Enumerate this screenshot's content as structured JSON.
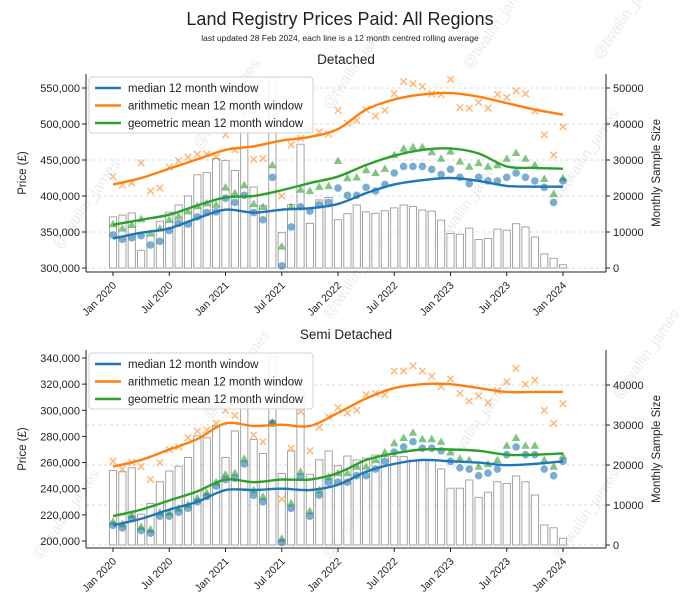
{
  "figure": {
    "title": "Land Registry Prices Paid: All Regions",
    "subtitle": "last updated 28 Feb 2024, each line is a 12 month centred rolling average",
    "watermark": "@twallin_james"
  },
  "colors": {
    "median": "#1f77b4",
    "arithmetic": "#ff7f0e",
    "geometric": "#2ca02c",
    "bars_edge": "#9a9a9a",
    "bars_fill": "#ffffff"
  },
  "chart_data": [
    {
      "type": "line+scatter+bar",
      "title": "Detached",
      "ylabel": "Price (£)",
      "y2label": "Monthly Sample Size",
      "ylim": [
        300000,
        550000
      ],
      "y2lim": [
        0,
        50000
      ],
      "grid": "horizontal dashed",
      "legend_position": "top-left",
      "yticks": [
        300000,
        350000,
        400000,
        450000,
        500000,
        550000
      ],
      "ytick_labels": [
        "300,000",
        "350,000",
        "400,000",
        "450,000",
        "500,000",
        "550,000"
      ],
      "y2ticks": [
        0,
        10000,
        20000,
        30000,
        40000,
        50000
      ],
      "y2tick_labels": [
        "0",
        "10000",
        "20000",
        "30000",
        "40000",
        "50000"
      ],
      "xticks": [
        "2020-01",
        "2020-07",
        "2021-01",
        "2021-07",
        "2022-01",
        "2022-07",
        "2023-01",
        "2023-07",
        "2024-01"
      ],
      "xtick_labels": [
        "Jan 2020",
        "Jul 2020",
        "Jan 2021",
        "Jul 2021",
        "Jan 2022",
        "Jul 2022",
        "Jan 2023",
        "Jul 2023",
        "Jan 2024"
      ],
      "x": [
        "2020-01",
        "2020-02",
        "2020-03",
        "2020-04",
        "2020-05",
        "2020-06",
        "2020-07",
        "2020-08",
        "2020-09",
        "2020-10",
        "2020-11",
        "2020-12",
        "2021-01",
        "2021-02",
        "2021-03",
        "2021-04",
        "2021-05",
        "2021-06",
        "2021-07",
        "2021-08",
        "2021-09",
        "2021-10",
        "2021-11",
        "2021-12",
        "2022-01",
        "2022-02",
        "2022-03",
        "2022-04",
        "2022-05",
        "2022-06",
        "2022-07",
        "2022-08",
        "2022-09",
        "2022-10",
        "2022-11",
        "2022-12",
        "2023-01",
        "2023-02",
        "2023-03",
        "2023-04",
        "2023-05",
        "2023-06",
        "2023-07",
        "2023-08",
        "2023-09",
        "2023-10",
        "2023-11",
        "2023-12",
        "2024-01"
      ],
      "sample_size": [
        14200,
        14700,
        15300,
        4900,
        10000,
        13000,
        15500,
        17500,
        20000,
        25900,
        26500,
        30400,
        29900,
        27100,
        39700,
        22500,
        17400,
        52200,
        9800,
        17600,
        34400,
        12400,
        18900,
        19600,
        13400,
        15100,
        17500,
        15600,
        15200,
        15900,
        16700,
        17500,
        17100,
        16100,
        15800,
        13300,
        9600,
        9400,
        11100,
        7900,
        8200,
        10800,
        10500,
        12300,
        11400,
        8600,
        3900,
        2700,
        900
      ],
      "monthly": {
        "median": [
          346000,
          340000,
          342000,
          345000,
          332000,
          337000,
          352000,
          362000,
          361000,
          371000,
          377000,
          378000,
          397000,
          391000,
          401000,
          377000,
          367000,
          426000,
          303000,
          357000,
          385000,
          379000,
          388000,
          391000,
          411000,
          401000,
          401000,
          412000,
          407000,
          416000,
          432000,
          441000,
          441000,
          441000,
          437000,
          430000,
          437000,
          426000,
          417000,
          426000,
          421000,
          421000,
          426000,
          432000,
          426000,
          421000,
          412000,
          391000,
          421000
        ],
        "arithmetic": [
          427000,
          415000,
          418000,
          446000,
          407000,
          411000,
          440000,
          449000,
          454000,
          458000,
          458000,
          454000,
          485000,
          464000,
          513000,
          451000,
          452000,
          510000,
          400000,
          471000,
          480000,
          494000,
          489000,
          486000,
          519000,
          501000,
          505000,
          520000,
          511000,
          519000,
          542000,
          559000,
          556000,
          552000,
          542000,
          541000,
          562000,
          523000,
          522000,
          530000,
          522000,
          541000,
          537000,
          546000,
          542000,
          518000,
          485000,
          457000,
          496000
        ],
        "geometric": [
          361000,
          355000,
          360000,
          368000,
          348000,
          355000,
          367000,
          372000,
          379000,
          386000,
          390000,
          388000,
          412000,
          404000,
          415000,
          389000,
          385000,
          443000,
          330000,
          385000,
          409000,
          407000,
          413000,
          414000,
          449000,
          425000,
          426000,
          436000,
          432000,
          438000,
          457000,
          466000,
          468000,
          468000,
          461000,
          452000,
          462000,
          448000,
          441000,
          446000,
          441000,
          443000,
          452000,
          460000,
          452000,
          443000,
          424000,
          403000,
          425000
        ]
      },
      "line_x": [
        "2020-01",
        "2020-04",
        "2020-07",
        "2020-10",
        "2021-01",
        "2021-04",
        "2021-07",
        "2021-10",
        "2022-01",
        "2022-04",
        "2022-07",
        "2022-10",
        "2023-01",
        "2023-04",
        "2023-07",
        "2023-10",
        "2024-01"
      ],
      "series": [
        {
          "name": "median 12 month window",
          "key": "median",
          "values": [
            341000,
            349000,
            355000,
            369000,
            381000,
            377000,
            381000,
            383000,
            389000,
            404000,
            416000,
            422000,
            425000,
            421000,
            414000,
            413000,
            413000
          ]
        },
        {
          "name": "arithmetic mean 12 month window",
          "key": "arithmetic",
          "values": [
            416000,
            425000,
            438000,
            451000,
            464000,
            469000,
            477000,
            482000,
            493000,
            520000,
            534000,
            541000,
            543000,
            538000,
            529000,
            520000,
            513000
          ]
        },
        {
          "name": "geometric mean 12 month window",
          "key": "geometric",
          "values": [
            360000,
            367000,
            374000,
            387000,
            398000,
            400000,
            408000,
            418000,
            427000,
            443000,
            456000,
            464000,
            466000,
            459000,
            441000,
            439000,
            438000
          ]
        }
      ]
    },
    {
      "type": "line+scatter+bar",
      "title": "Semi Detached",
      "ylabel": "Price (£)",
      "y2label": "Monthly Sample Size",
      "ylim": [
        200000,
        340000
      ],
      "y2lim": [
        0,
        40000
      ],
      "grid": "horizontal dashed",
      "legend_position": "top-left",
      "yticks": [
        200000,
        220000,
        240000,
        260000,
        280000,
        300000,
        320000,
        340000
      ],
      "ytick_labels": [
        "200,000",
        "220,000",
        "240,000",
        "260,000",
        "280,000",
        "300,000",
        "320,000",
        "340,000"
      ],
      "y2ticks": [
        0,
        10000,
        20000,
        30000,
        40000
      ],
      "y2tick_labels": [
        "0",
        "10000",
        "20000",
        "30000",
        "40000"
      ],
      "xticks": [
        "2020-01",
        "2020-07",
        "2021-01",
        "2021-07",
        "2022-01",
        "2022-07",
        "2023-01",
        "2023-07",
        "2024-01"
      ],
      "xtick_labels": [
        "Jan 2020",
        "Jul 2020",
        "Jan 2021",
        "Jul 2021",
        "Jan 2022",
        "Jul 2022",
        "Jan 2023",
        "Jul 2023",
        "Jan 2024"
      ],
      "x": [
        "2020-01",
        "2020-02",
        "2020-03",
        "2020-04",
        "2020-05",
        "2020-06",
        "2020-07",
        "2020-08",
        "2020-09",
        "2020-10",
        "2020-11",
        "2020-12",
        "2021-01",
        "2021-02",
        "2021-03",
        "2021-04",
        "2021-05",
        "2021-06",
        "2021-07",
        "2021-08",
        "2021-09",
        "2021-10",
        "2021-11",
        "2021-12",
        "2022-01",
        "2022-02",
        "2022-03",
        "2022-04",
        "2022-05",
        "2022-06",
        "2022-07",
        "2022-08",
        "2022-09",
        "2022-10",
        "2022-11",
        "2022-12",
        "2023-01",
        "2023-02",
        "2023-03",
        "2023-04",
        "2023-05",
        "2023-06",
        "2023-07",
        "2023-08",
        "2023-09",
        "2023-10",
        "2023-11",
        "2023-12",
        "2024-01"
      ],
      "sample_size": [
        18600,
        18300,
        19300,
        7700,
        10400,
        15800,
        18500,
        19700,
        21900,
        27300,
        26800,
        29800,
        21900,
        28500,
        39200,
        26400,
        22900,
        47100,
        17900,
        23500,
        38900,
        17700,
        21300,
        23500,
        19800,
        22250,
        21250,
        21700,
        22500,
        22100,
        22100,
        22100,
        21250,
        21250,
        21250,
        19000,
        14200,
        14200,
        16250,
        11900,
        13200,
        15800,
        15400,
        17250,
        15800,
        12500,
        5000,
        4300,
        1700
      ],
      "monthly": {
        "median": [
          212000,
          210000,
          217000,
          208000,
          206000,
          219000,
          219000,
          222000,
          225000,
          230000,
          234000,
          242000,
          247000,
          248000,
          259000,
          235000,
          230000,
          290000,
          199000,
          225000,
          249000,
          219000,
          235000,
          245000,
          245000,
          245000,
          250000,
          250000,
          255000,
          261000,
          268000,
          272000,
          276000,
          271000,
          271000,
          269000,
          261000,
          256000,
          255000,
          250000,
          252000,
          255000,
          266000,
          272000,
          266000,
          266000,
          255000,
          250000,
          261000
        ],
        "arithmetic": [
          261000,
          255000,
          260000,
          257000,
          247000,
          260000,
          270000,
          272000,
          279000,
          284000,
          285000,
          290000,
          300000,
          296000,
          305000,
          281000,
          276000,
          290000,
          232000,
          271000,
          299000,
          269000,
          287000,
          295000,
          302000,
          298000,
          300000,
          312000,
          313000,
          312000,
          330000,
          330000,
          334000,
          330000,
          326000,
          318000,
          324000,
          313000,
          307000,
          311000,
          306000,
          315000,
          322000,
          332000,
          320000,
          323000,
          300000,
          290000,
          305000
        ],
        "geometric": [
          215000,
          213000,
          220000,
          211000,
          209000,
          222000,
          222000,
          225000,
          228000,
          233000,
          237000,
          245000,
          251000,
          252000,
          263000,
          239000,
          234000,
          291000,
          202000,
          229000,
          253000,
          223000,
          239000,
          249000,
          252000,
          252000,
          257000,
          257000,
          262000,
          268000,
          275000,
          279000,
          283000,
          278000,
          278000,
          276000,
          268000,
          263000,
          262000,
          257000,
          259000,
          262000,
          273000,
          279000,
          273000,
          273000,
          262000,
          257000,
          265000
        ]
      },
      "line_x": [
        "2020-01",
        "2020-04",
        "2020-07",
        "2020-10",
        "2021-01",
        "2021-04",
        "2021-07",
        "2021-10",
        "2022-01",
        "2022-04",
        "2022-07",
        "2022-10",
        "2023-01",
        "2023-04",
        "2023-07",
        "2023-10",
        "2024-01"
      ],
      "series": [
        {
          "name": "median 12 month window",
          "key": "median",
          "values": [
            212000,
            217000,
            224000,
            230000,
            239000,
            239000,
            240000,
            239000,
            243000,
            253000,
            259000,
            262000,
            261000,
            260000,
            258000,
            259000,
            261000
          ]
        },
        {
          "name": "arithmetic mean 12 month window",
          "key": "arithmetic",
          "values": [
            257000,
            262000,
            270000,
            278000,
            290000,
            288000,
            289000,
            288000,
            298000,
            309000,
            317000,
            320000,
            320000,
            317000,
            314000,
            314000,
            314000
          ]
        },
        {
          "name": "geometric mean 12 month window",
          "key": "geometric",
          "values": [
            219000,
            224000,
            231000,
            238000,
            247000,
            245000,
            247000,
            247000,
            252000,
            262000,
            267000,
            270000,
            270000,
            269000,
            266000,
            266000,
            267000
          ]
        }
      ]
    }
  ]
}
